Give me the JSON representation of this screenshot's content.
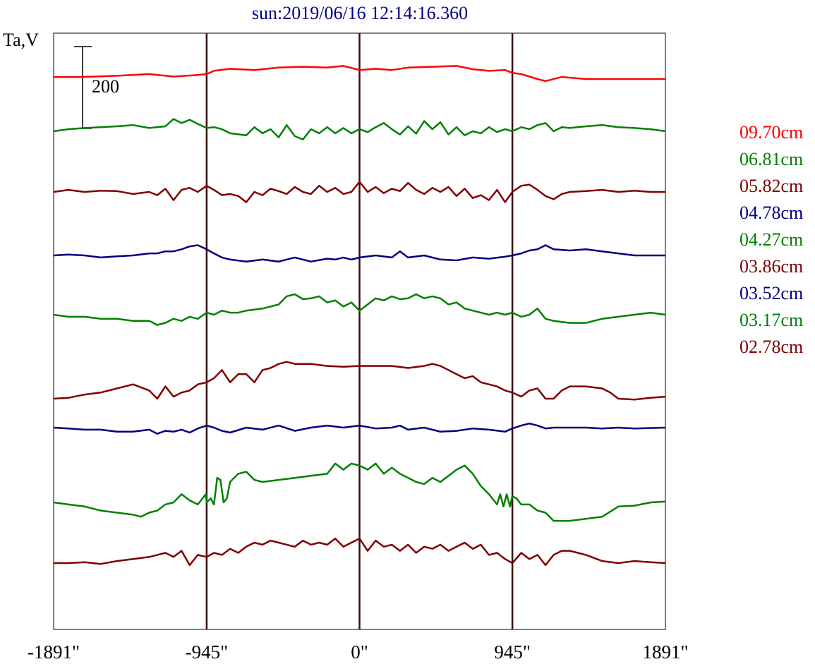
{
  "chart_data": {
    "type": "line",
    "title": "sun:2019/06/16 12:14:16.360",
    "ylabel": "Ta,V",
    "scale_bar_label": "200",
    "scale_bar_value": 200,
    "xlim": [
      -1891,
      1891
    ],
    "x_tick_labels": [
      "-1891\"",
      "-945\"",
      "0\"",
      "945\"",
      "1891\""
    ],
    "x_tick_values": [
      -1891,
      -945,
      0,
      945,
      1891
    ],
    "vertical_lines": [
      -945,
      0,
      945
    ],
    "legend_position": "right",
    "legend": [
      {
        "label": "09.70cm",
        "color": "#ff0000"
      },
      {
        "label": "06.81cm",
        "color": "#008000"
      },
      {
        "label": "05.82cm",
        "color": "#800000"
      },
      {
        "label": "04.78cm",
        "color": "#000080"
      },
      {
        "label": "04.27cm",
        "color": "#008000"
      },
      {
        "label": "03.86cm",
        "color": "#800000"
      },
      {
        "label": "03.52cm",
        "color": "#000080"
      },
      {
        "label": "03.17cm",
        "color": "#008000"
      },
      {
        "label": "02.78cm",
        "color": "#800000"
      }
    ],
    "series": [
      {
        "color": "#ff0000",
        "x": [
          -1891,
          -1720,
          -1500,
          -1300,
          -1150,
          -1000,
          -945,
          -900,
          -800,
          -650,
          -500,
          -350,
          -200,
          -100,
          0,
          100,
          200,
          300,
          450,
          600,
          700,
          800,
          900,
          945,
          1000,
          1100,
          1150,
          1250,
          1400,
          1600,
          1891
        ],
        "y": [
          5,
          5,
          8,
          12,
          6,
          10,
          12,
          20,
          25,
          22,
          28,
          30,
          28,
          32,
          22,
          25,
          22,
          28,
          30,
          32,
          24,
          20,
          22,
          15,
          12,
          0,
          -5,
          5,
          0,
          0,
          0
        ]
      },
      {
        "color": "#008000",
        "x": [
          -1891,
          -1800,
          -1700,
          -1600,
          -1500,
          -1400,
          -1300,
          -1200,
          -1150,
          -1100,
          -1050,
          -1000,
          -945,
          -900,
          -850,
          -800,
          -700,
          -650,
          -600,
          -550,
          -500,
          -450,
          -400,
          -350,
          -300,
          -250,
          -200,
          -150,
          -100,
          -50,
          0,
          50,
          100,
          150,
          200,
          250,
          300,
          350,
          400,
          450,
          500,
          550,
          600,
          650,
          700,
          750,
          800,
          850,
          900,
          945,
          1000,
          1050,
          1100,
          1150,
          1200,
          1250,
          1300,
          1400,
          1500,
          1600,
          1700,
          1800,
          1891
        ],
        "y": [
          0,
          5,
          8,
          10,
          12,
          15,
          8,
          12,
          30,
          20,
          28,
          18,
          8,
          10,
          5,
          -5,
          -10,
          10,
          -5,
          5,
          -15,
          15,
          -12,
          -20,
          5,
          -5,
          10,
          -5,
          8,
          -5,
          5,
          -2,
          10,
          20,
          5,
          -8,
          12,
          -6,
          25,
          5,
          22,
          -8,
          10,
          -10,
          0,
          -5,
          10,
          -2,
          5,
          0,
          10,
          5,
          15,
          20,
          0,
          10,
          8,
          12,
          15,
          10,
          8,
          5,
          0
        ]
      },
      {
        "color": "#800000",
        "x": [
          -1891,
          -1800,
          -1700,
          -1600,
          -1500,
          -1400,
          -1300,
          -1250,
          -1200,
          -1150,
          -1100,
          -1050,
          -1000,
          -945,
          -900,
          -850,
          -800,
          -750,
          -700,
          -650,
          -600,
          -550,
          -500,
          -450,
          -400,
          -350,
          -300,
          -250,
          -200,
          -150,
          -100,
          -50,
          0,
          50,
          100,
          150,
          200,
          250,
          300,
          350,
          400,
          450,
          500,
          550,
          600,
          650,
          700,
          750,
          800,
          850,
          900,
          945,
          1000,
          1050,
          1100,
          1150,
          1200,
          1250,
          1300,
          1400,
          1500,
          1600,
          1700,
          1800,
          1891
        ],
        "y": [
          0,
          5,
          0,
          3,
          2,
          -5,
          0,
          -8,
          8,
          -20,
          5,
          10,
          0,
          15,
          5,
          -8,
          -5,
          -10,
          -25,
          0,
          -8,
          8,
          2,
          -5,
          12,
          0,
          -5,
          15,
          0,
          10,
          -5,
          0,
          25,
          0,
          12,
          -3,
          8,
          2,
          22,
          5,
          -5,
          10,
          0,
          12,
          -10,
          8,
          -15,
          -8,
          -20,
          5,
          -25,
          0,
          15,
          18,
          5,
          -10,
          -18,
          -5,
          0,
          2,
          5,
          0,
          3,
          0,
          0
        ]
      },
      {
        "color": "#000080",
        "x": [
          -1891,
          -1800,
          -1700,
          -1600,
          -1500,
          -1400,
          -1300,
          -1250,
          -1200,
          -1150,
          -1100,
          -1050,
          -1000,
          -945,
          -900,
          -850,
          -800,
          -700,
          -600,
          -500,
          -400,
          -300,
          -200,
          -150,
          -100,
          -50,
          0,
          100,
          200,
          250,
          300,
          400,
          500,
          600,
          700,
          800,
          900,
          945,
          1000,
          1050,
          1100,
          1150,
          1200,
          1300,
          1400,
          1500,
          1600,
          1700,
          1891
        ],
        "y": [
          0,
          2,
          0,
          -5,
          -2,
          0,
          5,
          5,
          10,
          10,
          15,
          22,
          25,
          15,
          5,
          -5,
          -10,
          -15,
          -10,
          -15,
          -5,
          -15,
          -8,
          -10,
          -5,
          -10,
          -5,
          0,
          -5,
          10,
          -5,
          0,
          -10,
          -12,
          -5,
          -8,
          -3,
          0,
          5,
          12,
          15,
          25,
          15,
          12,
          15,
          10,
          5,
          0,
          0
        ]
      },
      {
        "color": "#008000",
        "x": [
          -1891,
          -1800,
          -1700,
          -1600,
          -1500,
          -1400,
          -1300,
          -1250,
          -1200,
          -1150,
          -1100,
          -1050,
          -1000,
          -945,
          -900,
          -850,
          -800,
          -750,
          -700,
          -600,
          -500,
          -450,
          -400,
          -350,
          -300,
          -250,
          -200,
          -150,
          -100,
          -50,
          0,
          50,
          100,
          150,
          200,
          250,
          300,
          350,
          400,
          450,
          500,
          550,
          600,
          650,
          700,
          750,
          800,
          850,
          900,
          945,
          1000,
          1050,
          1100,
          1150,
          1200,
          1300,
          1400,
          1500,
          1600,
          1700,
          1800,
          1891
        ],
        "y": [
          0,
          -5,
          -5,
          -10,
          -10,
          -15,
          -15,
          -25,
          -20,
          -10,
          -15,
          -5,
          -10,
          5,
          0,
          10,
          5,
          5,
          10,
          15,
          25,
          45,
          50,
          38,
          40,
          45,
          30,
          35,
          20,
          30,
          10,
          25,
          40,
          35,
          45,
          38,
          40,
          50,
          40,
          45,
          40,
          25,
          30,
          15,
          10,
          5,
          0,
          5,
          0,
          5,
          -5,
          0,
          15,
          -10,
          -15,
          -20,
          -20,
          -10,
          -5,
          0,
          5,
          0
        ]
      },
      {
        "color": "#800000",
        "x": [
          -1891,
          -1800,
          -1700,
          -1600,
          -1500,
          -1450,
          -1400,
          -1300,
          -1250,
          -1200,
          -1150,
          -1100,
          -1050,
          -1000,
          -945,
          -900,
          -850,
          -800,
          -750,
          -700,
          -650,
          -600,
          -550,
          -500,
          -450,
          -400,
          -300,
          -200,
          -100,
          0,
          100,
          200,
          300,
          400,
          450,
          500,
          550,
          600,
          650,
          700,
          750,
          800,
          850,
          900,
          945,
          1000,
          1050,
          1100,
          1150,
          1200,
          1250,
          1300,
          1350,
          1400,
          1500,
          1550,
          1600,
          1700,
          1750,
          1800,
          1891
        ],
        "y": [
          0,
          2,
          10,
          15,
          25,
          30,
          35,
          20,
          0,
          30,
          5,
          15,
          20,
          35,
          40,
          50,
          70,
          40,
          60,
          60,
          40,
          70,
          75,
          85,
          90,
          85,
          85,
          80,
          78,
          80,
          80,
          80,
          75,
          80,
          85,
          80,
          70,
          60,
          50,
          55,
          40,
          35,
          30,
          20,
          15,
          5,
          20,
          25,
          0,
          0,
          20,
          30,
          30,
          30,
          25,
          15,
          0,
          -2,
          0,
          2,
          5
        ]
      },
      {
        "color": "#000080",
        "x": [
          -1891,
          -1800,
          -1700,
          -1600,
          -1500,
          -1400,
          -1300,
          -1250,
          -1200,
          -1150,
          -1100,
          -1050,
          -1000,
          -945,
          -900,
          -850,
          -800,
          -700,
          -600,
          -500,
          -400,
          -300,
          -200,
          -100,
          0,
          100,
          200,
          250,
          300,
          400,
          500,
          600,
          700,
          800,
          900,
          945,
          1000,
          1050,
          1100,
          1150,
          1200,
          1300,
          1400,
          1500,
          1600,
          1700,
          1891
        ],
        "y": [
          0,
          -2,
          -5,
          -5,
          -10,
          -10,
          -5,
          -15,
          -8,
          -10,
          -5,
          -12,
          -2,
          5,
          0,
          -8,
          -12,
          0,
          -5,
          5,
          -8,
          0,
          5,
          0,
          5,
          -2,
          0,
          5,
          -5,
          0,
          -10,
          -8,
          -2,
          -5,
          -10,
          -2,
          5,
          10,
          5,
          -2,
          0,
          0,
          0,
          -2,
          0,
          -2,
          0
        ]
      },
      {
        "color": "#008000",
        "x": [
          -1891,
          -1800,
          -1700,
          -1600,
          -1500,
          -1400,
          -1350,
          -1300,
          -1250,
          -1200,
          -1150,
          -1100,
          -1050,
          -1000,
          -950,
          -945,
          -920,
          -900,
          -880,
          -860,
          -840,
          -820,
          -800,
          -750,
          -700,
          -650,
          -600,
          -500,
          -400,
          -300,
          -200,
          -150,
          -100,
          -50,
          0,
          50,
          100,
          150,
          200,
          250,
          300,
          350,
          400,
          450,
          500,
          550,
          600,
          650,
          700,
          750,
          800,
          850,
          870,
          890,
          910,
          930,
          945,
          970,
          1000,
          1050,
          1100,
          1150,
          1200,
          1300,
          1400,
          1500,
          1600,
          1700,
          1800,
          1891
        ],
        "y": [
          0,
          -5,
          -10,
          -20,
          -25,
          -30,
          -35,
          -25,
          -20,
          -5,
          0,
          20,
          5,
          -5,
          20,
          0,
          10,
          -5,
          60,
          55,
          0,
          10,
          50,
          70,
          75,
          55,
          50,
          55,
          60,
          65,
          70,
          95,
          80,
          95,
          90,
          80,
          95,
          70,
          85,
          70,
          60,
          50,
          45,
          60,
          50,
          65,
          80,
          90,
          70,
          40,
          20,
          -5,
          20,
          -10,
          20,
          -10,
          15,
          10,
          -5,
          -5,
          -20,
          -25,
          -45,
          -45,
          -40,
          -35,
          -10,
          -8,
          0,
          2
        ]
      },
      {
        "color": "#800000",
        "x": [
          -1891,
          -1800,
          -1700,
          -1600,
          -1500,
          -1400,
          -1300,
          -1250,
          -1200,
          -1150,
          -1100,
          -1050,
          -1000,
          -945,
          -900,
          -850,
          -800,
          -750,
          -700,
          -650,
          -600,
          -550,
          -500,
          -450,
          -400,
          -350,
          -300,
          -250,
          -200,
          -150,
          -100,
          -50,
          0,
          50,
          100,
          150,
          200,
          250,
          300,
          350,
          400,
          450,
          500,
          550,
          600,
          650,
          700,
          750,
          800,
          850,
          900,
          945,
          1000,
          1050,
          1100,
          1150,
          1200,
          1250,
          1300,
          1350,
          1400,
          1500,
          1600,
          1700,
          1800,
          1891
        ],
        "y": [
          0,
          0,
          2,
          -2,
          5,
          10,
          15,
          20,
          25,
          15,
          30,
          -5,
          20,
          15,
          25,
          20,
          35,
          25,
          40,
          50,
          45,
          55,
          50,
          45,
          40,
          55,
          45,
          50,
          45,
          60,
          40,
          50,
          60,
          30,
          55,
          40,
          45,
          30,
          45,
          25,
          40,
          35,
          45,
          30,
          40,
          50,
          35,
          45,
          20,
          25,
          10,
          0,
          25,
          10,
          20,
          -5,
          20,
          30,
          30,
          25,
          20,
          5,
          0,
          5,
          2,
          0
        ]
      }
    ]
  }
}
